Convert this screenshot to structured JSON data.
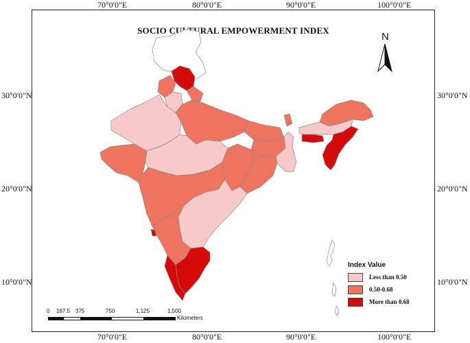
{
  "title": "SOCIO CULTURAL EMPOWERMENT INDEX",
  "north_label": "N",
  "graticule": {
    "longitudes": [
      "70°0'0\"E",
      "80°0'0\"E",
      "90°0'0\"E",
      "100°0'0\"E"
    ],
    "latitudes": [
      "30°0'0\"N",
      "20°0'0\"N",
      "10°0'0\"N"
    ]
  },
  "legend": {
    "title": "Index Value",
    "items": [
      {
        "label": "Less than 0.50",
        "color": "#f8c9c9"
      },
      {
        "label": "0.50-0.68",
        "color": "#ef7460"
      },
      {
        "label": "More than 0.68",
        "color": "#d40a0a"
      }
    ]
  },
  "scale_bar": {
    "ticks": [
      "0",
      "187.5",
      "375",
      "750",
      "1,125",
      "1,500"
    ],
    "units": "Kilometers"
  },
  "colors": {
    "outside": "#ffffff",
    "low": "#f8c9c9",
    "mid": "#ef7460",
    "high": "#d40a0a",
    "border": "#8a8a8a"
  }
}
